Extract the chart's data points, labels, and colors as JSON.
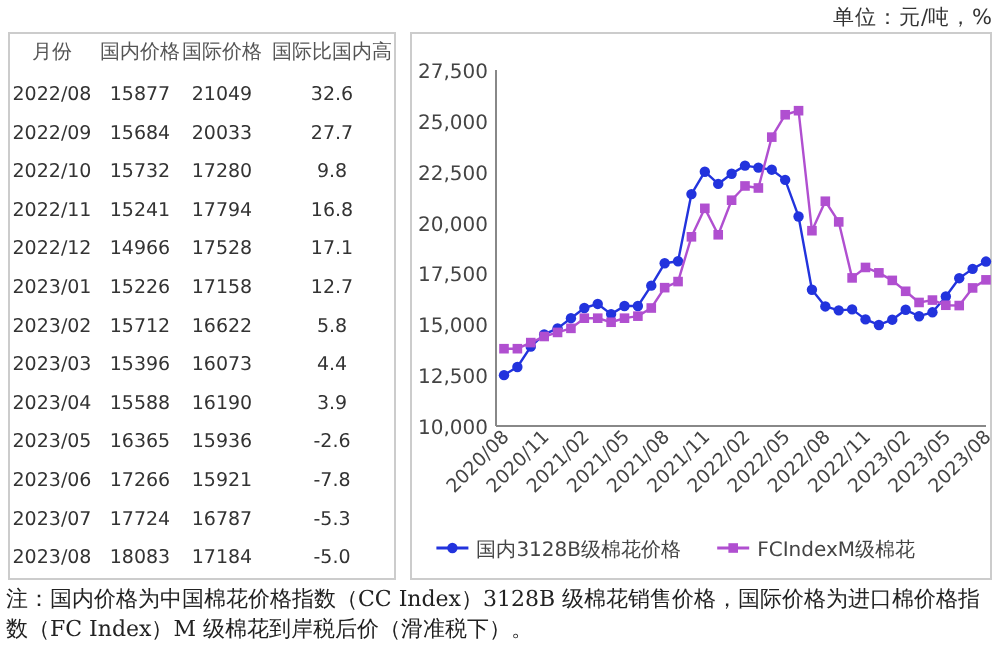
{
  "chart_data": [
    {
      "type": "other",
      "subtitle": "单位：元/吨，%",
      "xlabel": "月份",
      "categories": [
        "2022/08",
        "2022/09",
        "2022/10",
        "2022/11",
        "2022/12",
        "2023/01",
        "2023/02",
        "2023/03",
        "2023/04",
        "2023/05",
        "2023/06",
        "2023/07",
        "2023/08"
      ],
      "data_labels": true,
      "series": [
        {
          "name": "国内价格",
          "values": [
            15877,
            15684,
            15732,
            15241,
            14966,
            15226,
            15712,
            15396,
            15588,
            16365,
            17266,
            17724,
            18083
          ]
        },
        {
          "name": "国际价格",
          "values": [
            21049,
            20033,
            17280,
            17794,
            17528,
            17158,
            16622,
            16073,
            16190,
            15936,
            15921,
            16787,
            17184
          ]
        },
        {
          "name": "国际比国内高",
          "values": [
            32.6,
            27.7,
            9.8,
            16.8,
            17.1,
            12.7,
            5.8,
            4.4,
            3.9,
            -2.6,
            -7.8,
            -5.3,
            -5.0
          ],
          "value_labels": [
            "32.6",
            "27.7",
            "9.8",
            "16.8",
            "17.1",
            "12.7",
            "5.8",
            "4.4",
            "3.9",
            "-2.6",
            "-7.8",
            "-5.3",
            "-5.0"
          ]
        }
      ]
    },
    {
      "type": "line",
      "categories": [
        "2020/08",
        null,
        null,
        "2020/11",
        null,
        null,
        "2021/02",
        null,
        null,
        "2021/05",
        null,
        null,
        "2021/08",
        null,
        null,
        "2021/11",
        null,
        null,
        "2022/02",
        null,
        null,
        "2022/05",
        null,
        null,
        "2022/08",
        null,
        null,
        "2022/11",
        null,
        null,
        "2023/02",
        null,
        null,
        "2023/05",
        null,
        null,
        "2023/08"
      ],
      "series": [
        {
          "name": "国内3128B级棉花价格",
          "color": "#2233dd",
          "marker": "circle",
          "values": [
            12500,
            12900,
            13900,
            14500,
            14800,
            15300,
            15800,
            16000,
            15500,
            15900,
            15900,
            16900,
            18000,
            18100,
            21400,
            22500,
            21900,
            22400,
            22800,
            22700,
            22600,
            22100,
            20300,
            16700,
            15877,
            15684,
            15732,
            15241,
            14966,
            15226,
            15712,
            15396,
            15588,
            16365,
            17266,
            17724,
            18083
          ]
        },
        {
          "name": "FCIndexM级棉花",
          "color": "#b04fd0",
          "marker": "square",
          "values": [
            13800,
            13800,
            14100,
            14400,
            14600,
            14800,
            15300,
            15300,
            15100,
            15300,
            15400,
            15800,
            16800,
            17100,
            19300,
            20700,
            19400,
            21100,
            21800,
            21700,
            24200,
            25300,
            25500,
            19600,
            21049,
            20033,
            17280,
            17794,
            17528,
            17158,
            16622,
            16073,
            16190,
            15936,
            15921,
            16787,
            17184
          ]
        }
      ],
      "ylim": [
        10000,
        27500
      ],
      "yticks": [
        {
          "value": 10000,
          "label": "10,000"
        },
        {
          "value": 12500,
          "label": "12,500"
        },
        {
          "value": 15000,
          "label": "15,000"
        },
        {
          "value": 17500,
          "label": "17,500"
        },
        {
          "value": 20000,
          "label": "20,000"
        },
        {
          "value": 22500,
          "label": "22,500"
        },
        {
          "value": 25000,
          "label": "25,000"
        },
        {
          "value": 27500,
          "label": "27,500"
        }
      ],
      "legend": "bottom",
      "line_style": "solid",
      "annotations": [
        "注：国内价格为中国棉花价格指数（CC Index）3128B 级棉花销售价格，国际价格为进口棉价格指数（FC Index）M 级棉花到岸税后价（滑准税下）。"
      ]
    }
  ]
}
